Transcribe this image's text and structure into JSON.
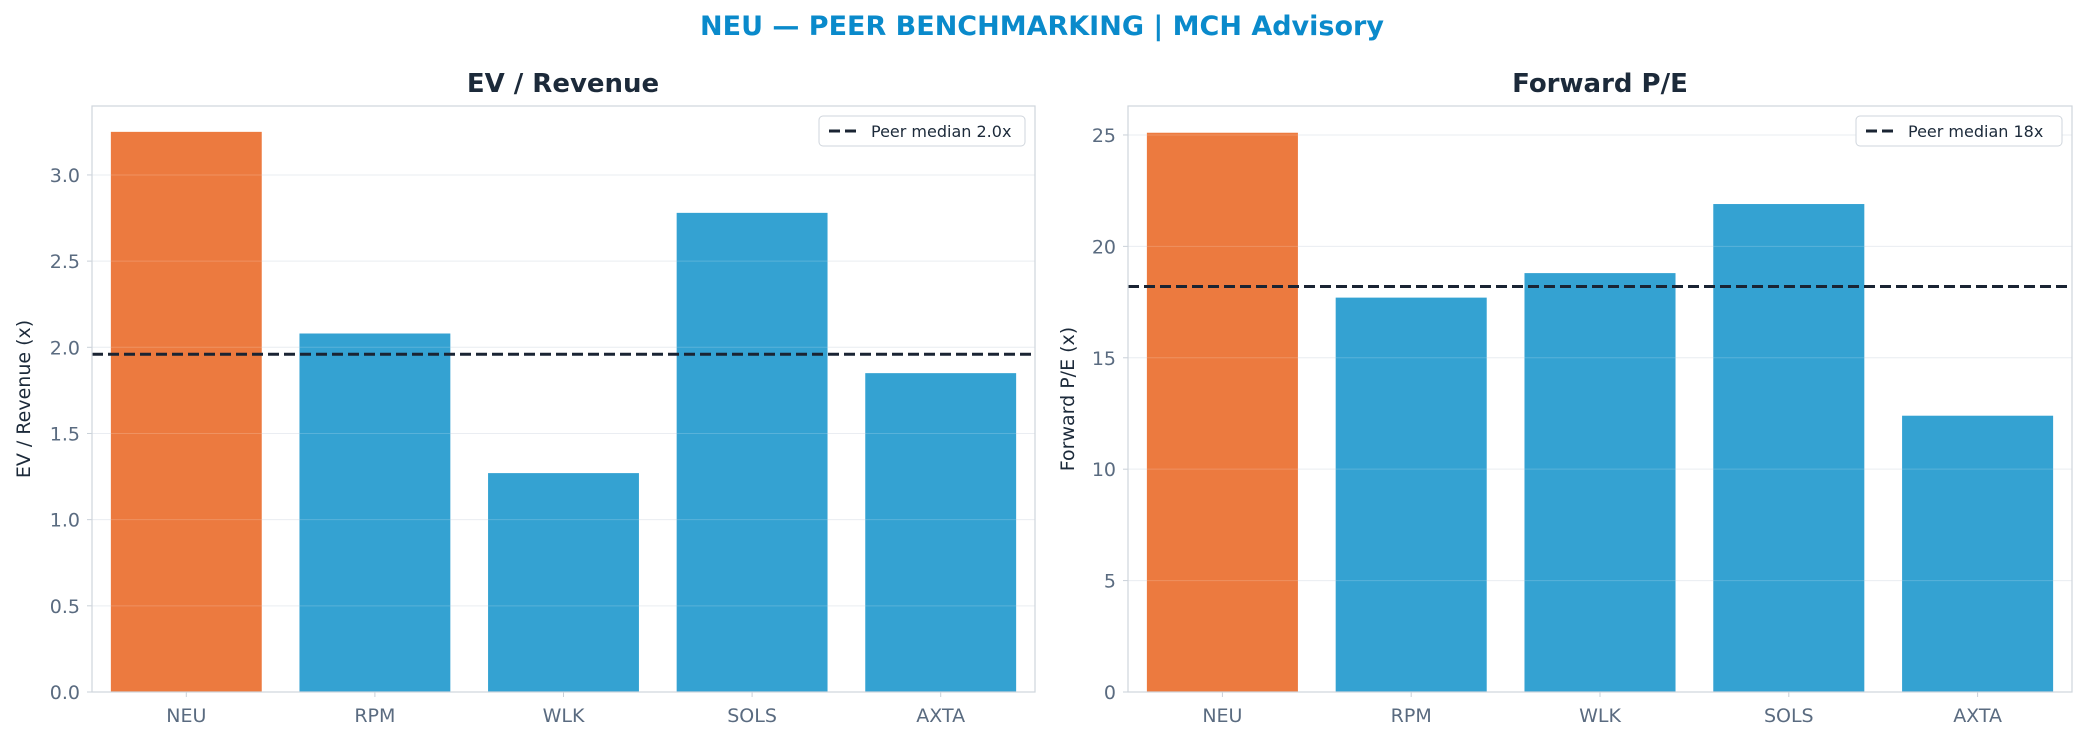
{
  "suptitle": "NEU — PEER BENCHMARKING | MCH Advisory",
  "colors": {
    "highlight": "#ec7a3f",
    "peer": "#34a2d2",
    "median": "#1a2433",
    "title": "#0a8acb"
  },
  "chart_data": [
    {
      "type": "bar",
      "title": "EV / Revenue",
      "ylabel": "EV / Revenue (x)",
      "categories": [
        "NEU",
        "RPM",
        "WLK",
        "SOLS",
        "AXTA"
      ],
      "values": [
        3.25,
        2.08,
        1.27,
        2.78,
        1.85
      ],
      "highlight_category": "NEU",
      "ylim": [
        0,
        3.4
      ],
      "yticks": [
        0.0,
        0.5,
        1.0,
        1.5,
        2.0,
        2.5,
        3.0
      ],
      "ytick_labels": [
        "0.0",
        "0.5",
        "1.0",
        "1.5",
        "2.0",
        "2.5",
        "3.0"
      ],
      "reference_line": {
        "value": 1.96,
        "label": "Peer median 2.0x",
        "style": "dashed"
      },
      "legend_position": "top-right",
      "grid": true
    },
    {
      "type": "bar",
      "title": "Forward P/E",
      "ylabel": "Forward P/E (x)",
      "categories": [
        "NEU",
        "RPM",
        "WLK",
        "SOLS",
        "AXTA"
      ],
      "values": [
        25.1,
        17.7,
        18.8,
        21.9,
        12.4
      ],
      "highlight_category": "NEU",
      "ylim": [
        0,
        26.3
      ],
      "yticks": [
        0,
        5,
        10,
        15,
        20,
        25
      ],
      "ytick_labels": [
        "0",
        "5",
        "10",
        "15",
        "20",
        "25"
      ],
      "reference_line": {
        "value": 18.2,
        "label": "Peer median 18x",
        "style": "dashed"
      },
      "legend_position": "top-right",
      "grid": true
    }
  ]
}
